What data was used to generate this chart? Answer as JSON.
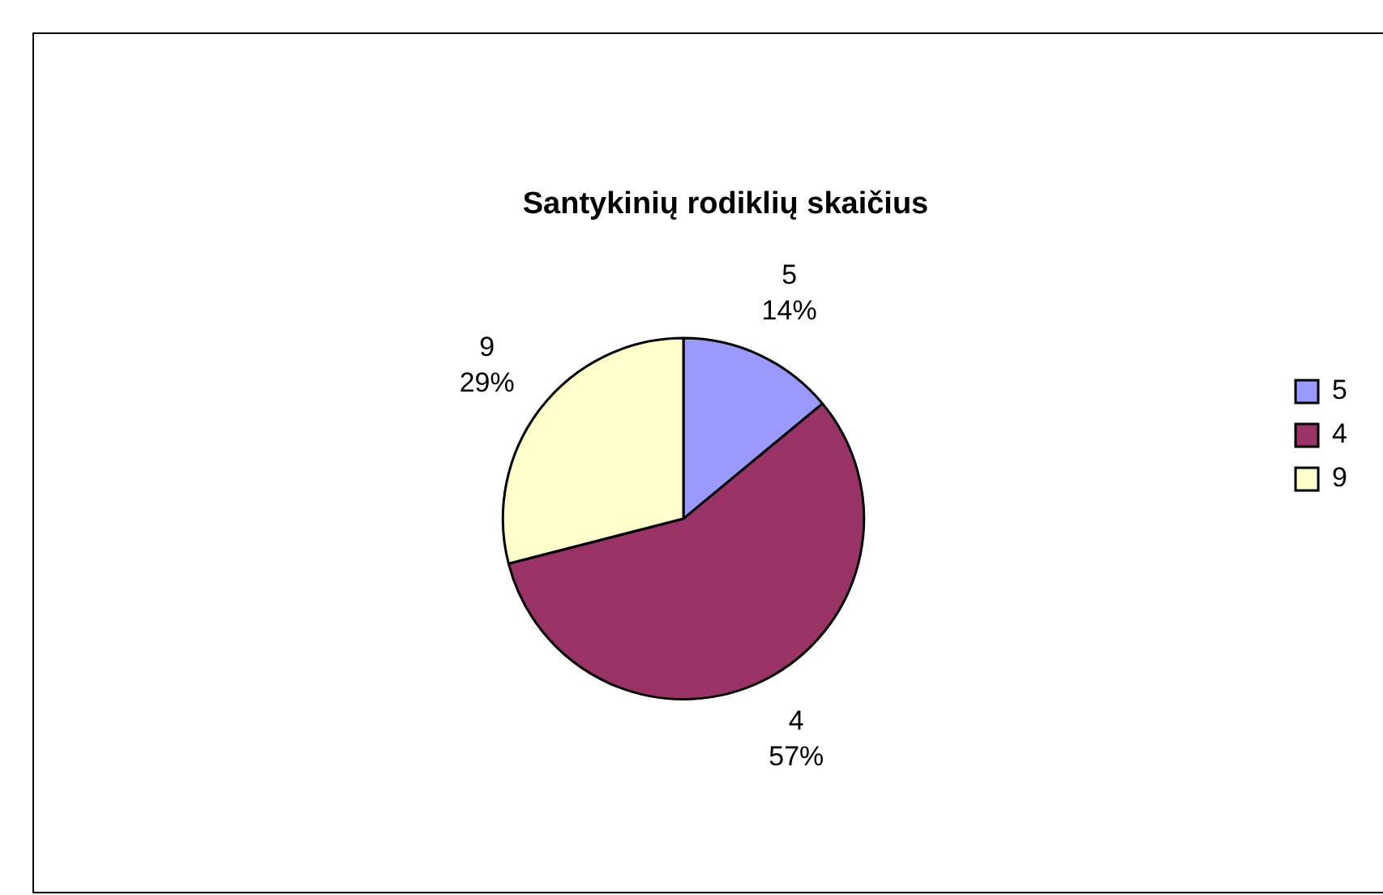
{
  "chart_data": {
    "type": "pie",
    "title": "Santykinių rodiklių skaičius",
    "categories": [
      "5",
      "4",
      "9"
    ],
    "values": [
      14,
      57,
      29
    ],
    "colors": [
      "#9999ff",
      "#993366",
      "#ffffcc"
    ],
    "value_labels": [
      "14%",
      "57%",
      "29%"
    ],
    "legend": "right"
  }
}
